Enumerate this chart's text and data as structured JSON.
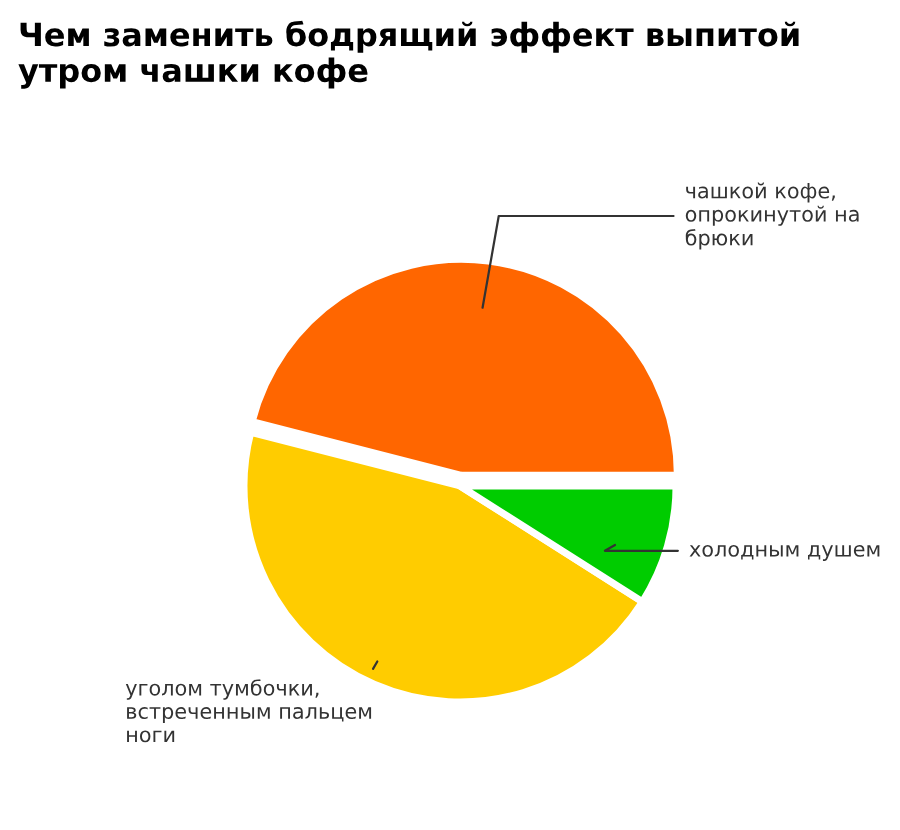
{
  "chart_data": {
    "type": "pie",
    "title": "Чем заменить бодрящий эффект выпитой утром чашки кофе",
    "categories": [
      "чашкой кофе, опрокинутой на брюки",
      "уголом тумбочки, встреченным пальцем ноги",
      "холодным душем"
    ],
    "values": [
      46,
      45,
      9
    ],
    "colors": [
      "#ff6600",
      "#ffcc00",
      "#00cc00"
    ]
  }
}
